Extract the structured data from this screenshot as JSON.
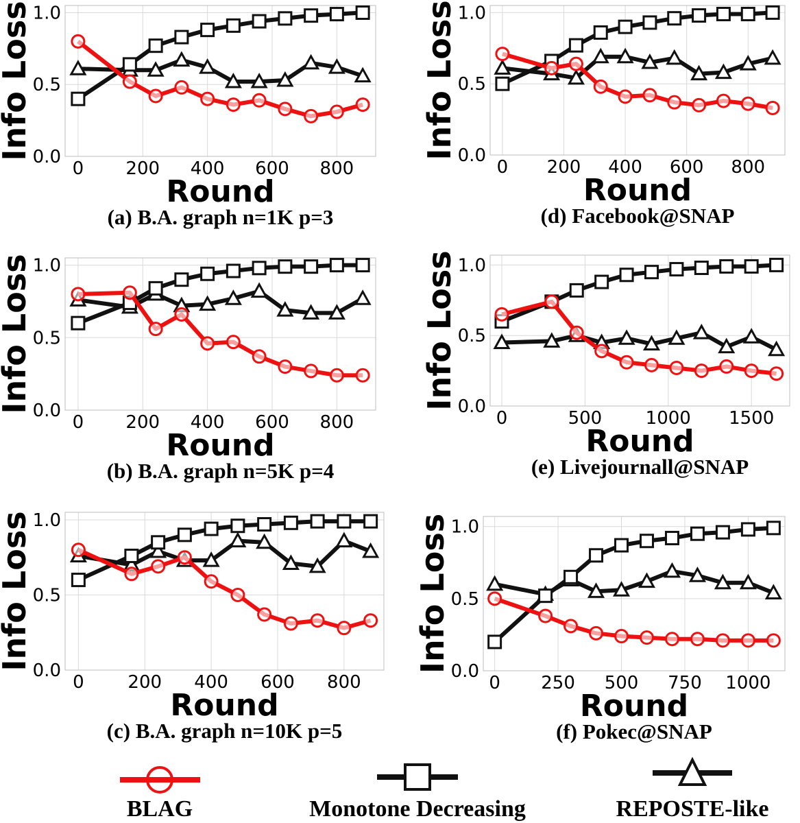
{
  "chart_data": [
    {
      "type": "line",
      "caption": "(a) B.A. graph  n=1K  p=3",
      "xlabel": "Round",
      "ylabel": "Info Loss",
      "xlim": [
        -40,
        920
      ],
      "ylim": [
        0,
        1.05
      ],
      "xticks": [
        0,
        200,
        400,
        600,
        800
      ],
      "yticks": [
        0.0,
        0.5,
        1.0
      ],
      "ytick_labels": [
        "0.0",
        "0.5",
        "1.0"
      ],
      "x": [
        0,
        160,
        240,
        320,
        400,
        480,
        560,
        640,
        720,
        800,
        880
      ],
      "series": [
        {
          "name": "BLAG",
          "values": [
            0.8,
            0.52,
            0.42,
            0.48,
            0.4,
            0.36,
            0.39,
            0.33,
            0.28,
            0.31,
            0.36
          ]
        },
        {
          "name": "Monotone Decreasing",
          "values": [
            0.4,
            0.64,
            0.77,
            0.83,
            0.88,
            0.91,
            0.94,
            0.96,
            0.98,
            0.99,
            1.0
          ]
        },
        {
          "name": "REPOSTE-like",
          "values": [
            0.61,
            0.6,
            0.6,
            0.67,
            0.62,
            0.52,
            0.52,
            0.53,
            0.65,
            0.62,
            0.56
          ]
        }
      ]
    },
    {
      "type": "line",
      "caption": "(b) B.A. graph  n=5K  p=4",
      "xlabel": "Round",
      "ylabel": "Info Loss",
      "xlim": [
        -40,
        920
      ],
      "ylim": [
        0,
        1.05
      ],
      "xticks": [
        0,
        200,
        400,
        600,
        800
      ],
      "yticks": [
        0.0,
        0.5,
        1.0
      ],
      "ytick_labels": [
        "0.0",
        "0.5",
        "1.0"
      ],
      "x": [
        0,
        160,
        240,
        320,
        400,
        480,
        560,
        640,
        720,
        800,
        880
      ],
      "series": [
        {
          "name": "BLAG",
          "values": [
            0.8,
            0.81,
            0.56,
            0.66,
            0.46,
            0.47,
            0.37,
            0.3,
            0.27,
            0.24,
            0.24
          ]
        },
        {
          "name": "Monotone Decreasing",
          "values": [
            0.6,
            0.74,
            0.84,
            0.9,
            0.94,
            0.96,
            0.98,
            0.99,
            0.99,
            1.0,
            1.0
          ]
        },
        {
          "name": "REPOSTE-like",
          "values": [
            0.76,
            0.71,
            0.8,
            0.72,
            0.73,
            0.77,
            0.82,
            0.69,
            0.67,
            0.67,
            0.77
          ]
        }
      ]
    },
    {
      "type": "line",
      "caption": "(c) B.A. graph  n=10K  p=5",
      "xlabel": "Round",
      "ylabel": "Info Loss",
      "xlim": [
        -40,
        920
      ],
      "ylim": [
        0,
        1.05
      ],
      "xticks": [
        0,
        200,
        400,
        600,
        800
      ],
      "yticks": [
        0.0,
        0.5,
        1.0
      ],
      "ytick_labels": [
        "0.0",
        "0.5",
        "1.0"
      ],
      "x": [
        0,
        160,
        240,
        320,
        400,
        480,
        560,
        640,
        720,
        800,
        880
      ],
      "series": [
        {
          "name": "BLAG",
          "values": [
            0.8,
            0.64,
            0.69,
            0.75,
            0.59,
            0.5,
            0.37,
            0.31,
            0.33,
            0.28,
            0.33
          ]
        },
        {
          "name": "Monotone Decreasing",
          "values": [
            0.6,
            0.76,
            0.85,
            0.9,
            0.94,
            0.96,
            0.97,
            0.98,
            0.99,
            0.99,
            0.99
          ]
        },
        {
          "name": "REPOSTE-like",
          "values": [
            0.76,
            0.7,
            0.79,
            0.73,
            0.73,
            0.86,
            0.85,
            0.71,
            0.69,
            0.86,
            0.79
          ]
        }
      ]
    },
    {
      "type": "line",
      "caption": "(d) Facebook@SNAP",
      "xlabel": "Round",
      "ylabel": "Info Loss",
      "xlim": [
        -40,
        920
      ],
      "ylim": [
        0,
        1.05
      ],
      "xticks": [
        0,
        200,
        400,
        600,
        800
      ],
      "yticks": [
        0.0,
        0.5,
        1.0
      ],
      "ytick_labels": [
        "0.0",
        "0.5",
        "1.0"
      ],
      "x": [
        0,
        160,
        240,
        320,
        400,
        480,
        560,
        640,
        720,
        800,
        880
      ],
      "series": [
        {
          "name": "BLAG",
          "values": [
            0.71,
            0.61,
            0.64,
            0.48,
            0.41,
            0.42,
            0.37,
            0.35,
            0.38,
            0.36,
            0.33
          ]
        },
        {
          "name": "Monotone Decreasing",
          "values": [
            0.5,
            0.66,
            0.77,
            0.86,
            0.9,
            0.93,
            0.96,
            0.98,
            0.99,
            0.99,
            1.0
          ]
        },
        {
          "name": "REPOSTE-like",
          "values": [
            0.61,
            0.57,
            0.54,
            0.69,
            0.69,
            0.65,
            0.68,
            0.57,
            0.58,
            0.64,
            0.68
          ]
        }
      ]
    },
    {
      "type": "line",
      "caption": "(e) Livejournall@SNAP",
      "xlabel": "Round",
      "ylabel": "Info Loss",
      "xlim": [
        -70,
        1730
      ],
      "ylim": [
        0,
        1.07
      ],
      "xticks": [
        0,
        500,
        1000,
        1500
      ],
      "yticks": [
        0.0,
        0.5,
        1.0
      ],
      "ytick_labels": [
        "0.0",
        "0.5",
        "1.0"
      ],
      "x": [
        0,
        300,
        450,
        600,
        750,
        900,
        1050,
        1200,
        1350,
        1500,
        1650
      ],
      "series": [
        {
          "name": "BLAG",
          "values": [
            0.65,
            0.74,
            0.52,
            0.39,
            0.31,
            0.29,
            0.27,
            0.25,
            0.28,
            0.25,
            0.23
          ]
        },
        {
          "name": "Monotone Decreasing",
          "values": [
            0.6,
            0.74,
            0.82,
            0.88,
            0.93,
            0.95,
            0.97,
            0.98,
            0.99,
            0.99,
            1.0
          ]
        },
        {
          "name": "REPOSTE-like",
          "values": [
            0.45,
            0.46,
            0.5,
            0.45,
            0.48,
            0.44,
            0.48,
            0.52,
            0.42,
            0.49,
            0.4
          ]
        }
      ]
    },
    {
      "type": "line",
      "caption": "(f) Pokec@SNAP",
      "xlabel": "Round",
      "ylabel": "Info Loss",
      "xlim": [
        -45,
        1145
      ],
      "ylim": [
        0,
        1.07
      ],
      "xticks": [
        0,
        250,
        500,
        750,
        1000
      ],
      "yticks": [
        0.0,
        0.5,
        1.0
      ],
      "ytick_labels": [
        "0.0",
        "0.5",
        "1.0"
      ],
      "x": [
        0,
        200,
        300,
        400,
        500,
        600,
        700,
        800,
        900,
        1000,
        1100
      ],
      "series": [
        {
          "name": "BLAG",
          "values": [
            0.5,
            0.38,
            0.31,
            0.26,
            0.24,
            0.23,
            0.22,
            0.22,
            0.21,
            0.21,
            0.21
          ]
        },
        {
          "name": "Monotone Decreasing",
          "values": [
            0.2,
            0.52,
            0.65,
            0.8,
            0.87,
            0.9,
            0.92,
            0.95,
            0.96,
            0.98,
            0.99
          ]
        },
        {
          "name": "REPOSTE-like",
          "values": [
            0.6,
            0.53,
            0.63,
            0.55,
            0.56,
            0.62,
            0.69,
            0.66,
            0.61,
            0.61,
            0.54
          ]
        }
      ]
    }
  ],
  "legend": {
    "items": [
      {
        "name": "BLAG",
        "marker": "circle",
        "color": "#ee1111"
      },
      {
        "name": "Monotone Decreasing",
        "marker": "square",
        "color": "#111111"
      },
      {
        "name": "REPOSTE-like",
        "marker": "triangle",
        "color": "#111111"
      }
    ]
  },
  "colors": {
    "blag": "#ee1111",
    "black": "#111111"
  }
}
